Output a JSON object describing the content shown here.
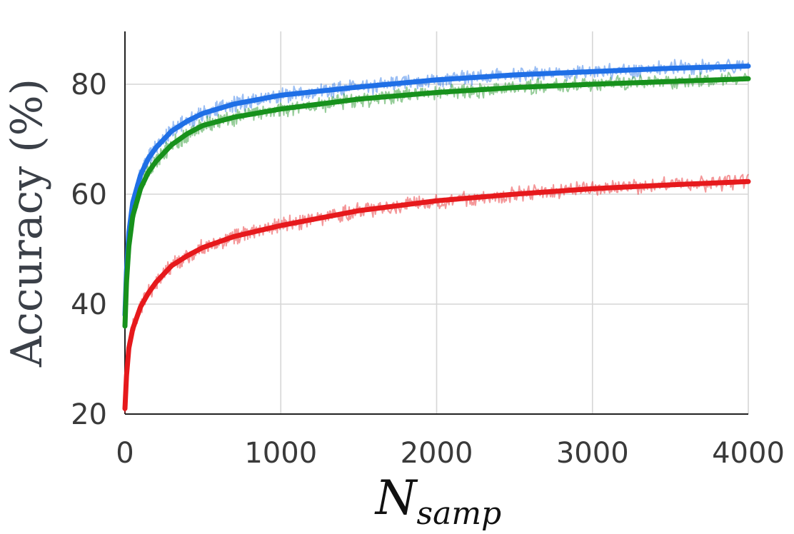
{
  "chart_data": {
    "type": "line",
    "title": "",
    "ylabel": "Accuracy (%)",
    "xlabel": {
      "main": "N",
      "subscript": "samp"
    },
    "xlim": [
      0,
      4000
    ],
    "ylim": [
      20,
      90
    ],
    "xticks": [
      0,
      1000,
      2000,
      3000,
      4000
    ],
    "xtick_labels": [
      "0",
      "1000",
      "2000",
      "3000",
      "4000"
    ],
    "yticks": [
      20,
      40,
      60,
      80
    ],
    "ytick_labels": [
      "20",
      "40",
      "60",
      "80"
    ],
    "grid": true,
    "legend": "none",
    "series": [
      {
        "color": "#1f6fe6",
        "x": [
          0,
          10,
          25,
          50,
          100,
          150,
          200,
          300,
          400,
          500,
          700,
          1000,
          1500,
          2000,
          2500,
          3000,
          3500,
          4000
        ],
        "values": [
          38,
          46,
          53,
          58.5,
          63.5,
          66.5,
          68.5,
          71.5,
          73.3,
          74.7,
          76.4,
          78,
          79.5,
          80.8,
          81.7,
          82.3,
          82.9,
          83.3
        ]
      },
      {
        "color": "#17911c",
        "x": [
          0,
          10,
          25,
          50,
          100,
          150,
          200,
          300,
          400,
          500,
          700,
          1000,
          1500,
          2000,
          2500,
          3000,
          3500,
          4000
        ],
        "values": [
          36,
          44,
          50.5,
          56,
          61,
          64,
          66,
          69,
          71,
          72.5,
          74,
          75.5,
          77.3,
          78.5,
          79.4,
          80,
          80.5,
          81
        ]
      },
      {
        "color": "#e6191c",
        "x": [
          0,
          10,
          25,
          50,
          100,
          150,
          200,
          300,
          400,
          500,
          700,
          1000,
          1500,
          2000,
          2500,
          3000,
          3500,
          4000
        ],
        "values": [
          21,
          27,
          32,
          35.5,
          39.5,
          42,
          44,
          47,
          48.8,
          50.3,
          52.3,
          54.3,
          57,
          58.8,
          60,
          61,
          61.7,
          62.3
        ]
      }
    ]
  }
}
